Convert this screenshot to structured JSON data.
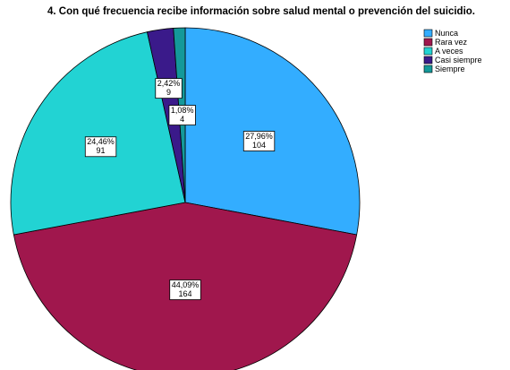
{
  "chart_data": {
    "type": "pie",
    "title": "4. Con qué frecuencia recibe información sobre salud mental o prevención del suicidio.",
    "categories": [
      "Nunca",
      "Rara vez",
      "A veces",
      "Casi siempre",
      "Siempre"
    ],
    "values": [
      27.96,
      44.09,
      24.46,
      2.42,
      1.08
    ],
    "value_labels": [
      "27,96%",
      "44,09%",
      "24,46%",
      "2,42%",
      "1,08%"
    ],
    "counts": [
      104,
      164,
      91,
      9,
      4
    ],
    "colors": [
      "#33adff",
      "#a0174d",
      "#22d3d3",
      "#3a1a8a",
      "#14999a"
    ],
    "legend": "top-right"
  }
}
